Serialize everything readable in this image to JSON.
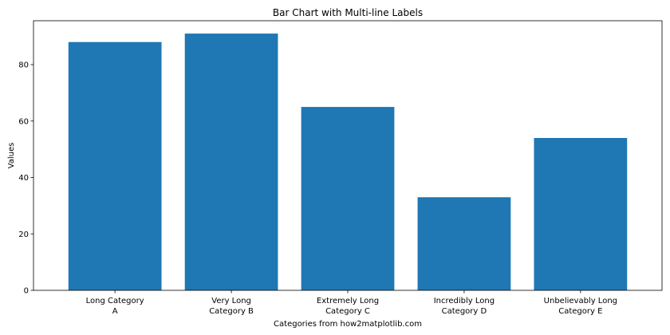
{
  "chart_data": {
    "type": "bar",
    "title": "Bar Chart with Multi-line Labels",
    "xlabel": "Categories from how2matplotlib.com",
    "ylabel": "Values",
    "categories": [
      [
        "Long Category",
        "A"
      ],
      [
        "Very Long",
        "Category B"
      ],
      [
        "Extremely Long",
        "Category C"
      ],
      [
        "Incredibly Long",
        "Category D"
      ],
      [
        "Unbelievably Long",
        "Category E"
      ]
    ],
    "values": [
      88,
      91,
      65,
      33,
      54
    ],
    "ylim": [
      0,
      95.55
    ],
    "yticks": [
      0,
      20,
      40,
      60,
      80
    ],
    "grid": false,
    "bar_color": "#1f77b4",
    "axis_color": "#000000"
  }
}
